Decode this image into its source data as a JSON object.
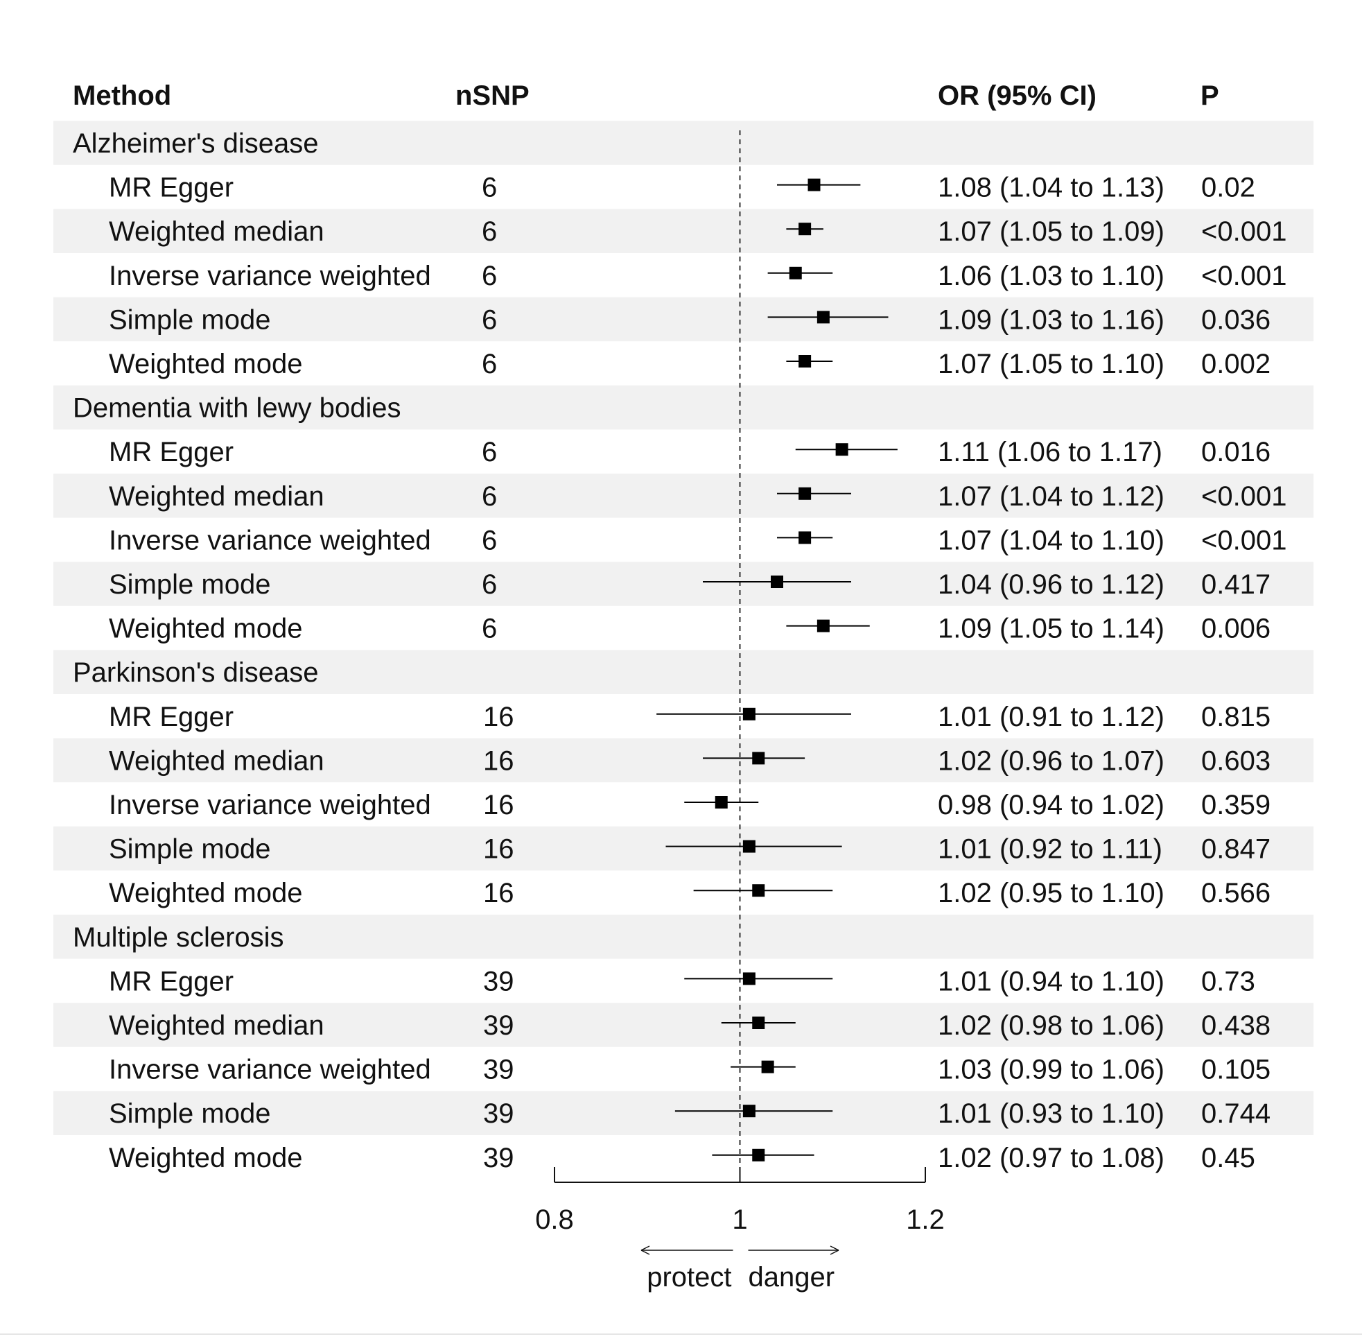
{
  "headers": {
    "method": "Method",
    "nsnp": "nSNP",
    "or": "OR (95% CI)",
    "p": "P"
  },
  "colors": {
    "stripe": "#f1f1f1",
    "mark": "#000000",
    "text": "#111111",
    "refline": "#333333"
  },
  "chart_data": {
    "type": "forest",
    "title": "",
    "xlabel": "",
    "x_ticks": [
      "0.8",
      "1",
      "1.2"
    ],
    "xlim": [
      0.8,
      1.2
    ],
    "reference_line": 1,
    "direction_labels": {
      "left": "protect",
      "right": "danger"
    },
    "groups": [
      {
        "name": "Alzheimer's disease",
        "rows": [
          {
            "method": "MR Egger",
            "nsnp": "6",
            "or": 1.08,
            "lo": 1.04,
            "hi": 1.13,
            "or_text": "1.08 (1.04 to 1.13)",
            "p": "0.02"
          },
          {
            "method": "Weighted median",
            "nsnp": "6",
            "or": 1.07,
            "lo": 1.05,
            "hi": 1.09,
            "or_text": "1.07 (1.05 to 1.09)",
            "p": "<0.001"
          },
          {
            "method": "Inverse variance weighted",
            "nsnp": "6",
            "or": 1.06,
            "lo": 1.03,
            "hi": 1.1,
            "or_text": "1.06 (1.03 to 1.10)",
            "p": "<0.001"
          },
          {
            "method": "Simple mode",
            "nsnp": "6",
            "or": 1.09,
            "lo": 1.03,
            "hi": 1.16,
            "or_text": "1.09 (1.03 to 1.16)",
            "p": "0.036"
          },
          {
            "method": "Weighted mode",
            "nsnp": "6",
            "or": 1.07,
            "lo": 1.05,
            "hi": 1.1,
            "or_text": "1.07 (1.05 to 1.10)",
            "p": "0.002"
          }
        ]
      },
      {
        "name": "Dementia with lewy bodies",
        "rows": [
          {
            "method": "MR Egger",
            "nsnp": "6",
            "or": 1.11,
            "lo": 1.06,
            "hi": 1.17,
            "or_text": "1.11 (1.06 to 1.17)",
            "p": "0.016"
          },
          {
            "method": "Weighted median",
            "nsnp": "6",
            "or": 1.07,
            "lo": 1.04,
            "hi": 1.12,
            "or_text": "1.07 (1.04 to 1.12)",
            "p": "<0.001"
          },
          {
            "method": "Inverse variance weighted",
            "nsnp": "6",
            "or": 1.07,
            "lo": 1.04,
            "hi": 1.1,
            "or_text": "1.07 (1.04 to 1.10)",
            "p": "<0.001"
          },
          {
            "method": "Simple mode",
            "nsnp": "6",
            "or": 1.04,
            "lo": 0.96,
            "hi": 1.12,
            "or_text": "1.04 (0.96 to 1.12)",
            "p": "0.417"
          },
          {
            "method": "Weighted mode",
            "nsnp": "6",
            "or": 1.09,
            "lo": 1.05,
            "hi": 1.14,
            "or_text": "1.09 (1.05 to 1.14)",
            "p": "0.006"
          }
        ]
      },
      {
        "name": "Parkinson's disease",
        "rows": [
          {
            "method": "MR Egger",
            "nsnp": "16",
            "or": 1.01,
            "lo": 0.91,
            "hi": 1.12,
            "or_text": "1.01 (0.91 to 1.12)",
            "p": "0.815"
          },
          {
            "method": "Weighted median",
            "nsnp": "16",
            "or": 1.02,
            "lo": 0.96,
            "hi": 1.07,
            "or_text": "1.02 (0.96 to 1.07)",
            "p": "0.603"
          },
          {
            "method": "Inverse variance weighted",
            "nsnp": "16",
            "or": 0.98,
            "lo": 0.94,
            "hi": 1.02,
            "or_text": "0.98 (0.94 to 1.02)",
            "p": "0.359"
          },
          {
            "method": "Simple mode",
            "nsnp": "16",
            "or": 1.01,
            "lo": 0.92,
            "hi": 1.11,
            "or_text": "1.01 (0.92 to 1.11)",
            "p": "0.847"
          },
          {
            "method": "Weighted mode",
            "nsnp": "16",
            "or": 1.02,
            "lo": 0.95,
            "hi": 1.1,
            "or_text": "1.02 (0.95 to 1.10)",
            "p": "0.566"
          }
        ]
      },
      {
        "name": "Multiple sclerosis",
        "rows": [
          {
            "method": "MR Egger",
            "nsnp": "39",
            "or": 1.01,
            "lo": 0.94,
            "hi": 1.1,
            "or_text": "1.01 (0.94 to 1.10)",
            "p": "0.73"
          },
          {
            "method": "Weighted median",
            "nsnp": "39",
            "or": 1.02,
            "lo": 0.98,
            "hi": 1.06,
            "or_text": "1.02 (0.98 to 1.06)",
            "p": "0.438"
          },
          {
            "method": "Inverse variance weighted",
            "nsnp": "39",
            "or": 1.03,
            "lo": 0.99,
            "hi": 1.06,
            "or_text": "1.03 (0.99 to 1.06)",
            "p": "0.105"
          },
          {
            "method": "Simple mode",
            "nsnp": "39",
            "or": 1.01,
            "lo": 0.93,
            "hi": 1.1,
            "or_text": "1.01 (0.93 to 1.10)",
            "p": "0.744"
          },
          {
            "method": "Weighted mode",
            "nsnp": "39",
            "or": 1.02,
            "lo": 0.97,
            "hi": 1.08,
            "or_text": "1.02 (0.97 to 1.08)",
            "p": "0.45"
          }
        ]
      }
    ]
  }
}
